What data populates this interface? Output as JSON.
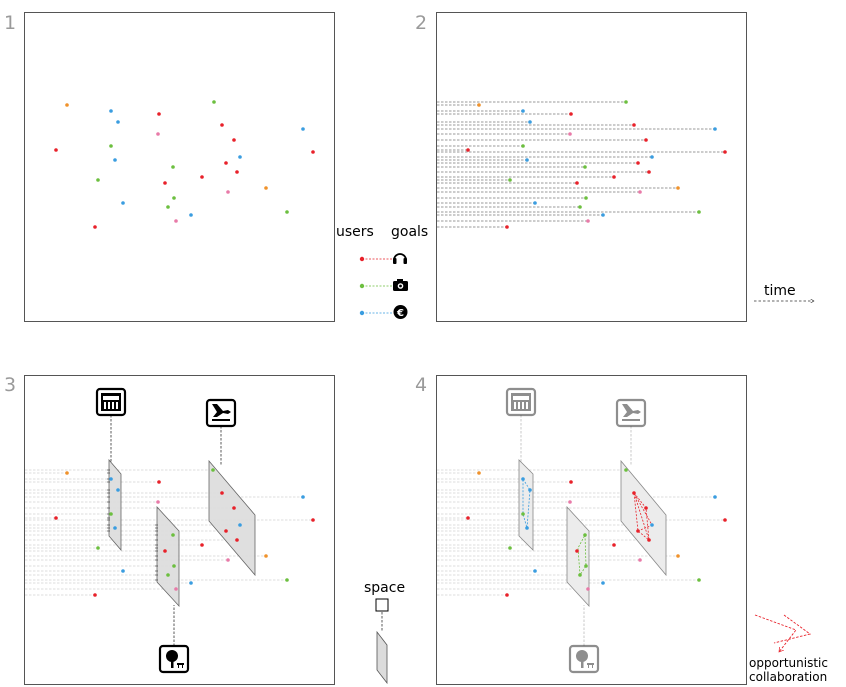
{
  "panels": [
    {
      "number": "1"
    },
    {
      "number": "2"
    },
    {
      "number": "3"
    },
    {
      "number": "4"
    }
  ],
  "legend": {
    "users_label": "users",
    "goals_label": "goals",
    "items": [
      {
        "color": "#e8212a",
        "icon": "headphones-icon"
      },
      {
        "color": "#6cbf3f",
        "icon": "camera-icon"
      },
      {
        "color": "#3a9de0",
        "icon": "euro-icon"
      }
    ]
  },
  "time_label": "time",
  "space_label": "space",
  "collab_label_line1": "opportunistic",
  "collab_label_line2": "collaboration",
  "goal_icons": [
    "stadium-icon",
    "airport-icon",
    "park-icon"
  ],
  "colors": {
    "red": "#e8212a",
    "green": "#6cbf3f",
    "blue": "#3a9de0",
    "orange": "#f0922b",
    "pink": "#e87aa8",
    "border": "#555555",
    "dash": "#333333",
    "faded_dash": "#bdbdbd",
    "plane_fill": "#dcdcdc"
  }
}
